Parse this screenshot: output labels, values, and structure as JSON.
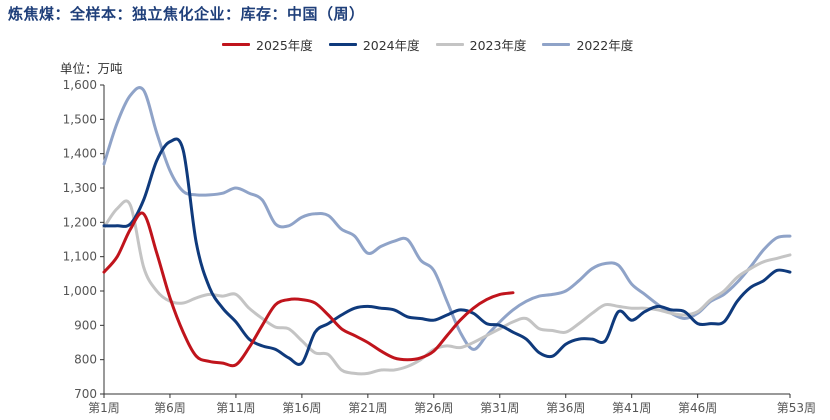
{
  "title": "炼焦煤：全样本：独立焦化企业：库存：中国（周）",
  "unit_label": "单位：万吨",
  "chart_data": {
    "type": "line",
    "title": "炼焦煤：全样本：独立焦化企业：库存：中国（周）",
    "ylabel": "单位：万吨",
    "ylim": [
      700,
      1600
    ],
    "yticks": [
      700,
      800,
      900,
      1000,
      1100,
      1200,
      1300,
      1400,
      1500,
      1600
    ],
    "ytick_labels": [
      "700",
      "800",
      "900",
      "1,000",
      "1,100",
      "1,200",
      "1,300",
      "1,400",
      "1,500",
      "1,600"
    ],
    "xlim": [
      1,
      53
    ],
    "xticks": [
      1,
      6,
      11,
      16,
      21,
      26,
      31,
      36,
      41,
      46,
      53
    ],
    "xtick_labels": [
      "第1周",
      "第6周",
      "第11周",
      "第16周",
      "第21周",
      "第26周",
      "第31周",
      "第36周",
      "第41周",
      "第46周",
      "第53周"
    ],
    "legend_position": "top",
    "grid": false,
    "series": [
      {
        "name": "2025年度",
        "color": "#c0141c",
        "x": [
          1,
          2,
          3,
          4,
          5,
          6,
          7,
          8,
          9,
          10,
          11,
          12,
          13,
          14,
          15,
          16,
          17,
          18,
          19,
          20,
          21,
          22,
          23,
          24,
          25,
          26,
          27,
          28,
          29,
          30,
          31,
          32
        ],
        "values": [
          1055,
          1100,
          1180,
          1225,
          1110,
          980,
          880,
          810,
          795,
          790,
          785,
          835,
          900,
          960,
          975,
          975,
          965,
          930,
          890,
          870,
          850,
          825,
          805,
          800,
          805,
          825,
          870,
          915,
          950,
          975,
          990,
          995
        ]
      },
      {
        "name": "2024年度",
        "color": "#0f3a7c",
        "x": [
          1,
          2,
          3,
          4,
          5,
          6,
          7,
          8,
          9,
          10,
          11,
          12,
          13,
          14,
          15,
          16,
          17,
          18,
          19,
          20,
          21,
          22,
          23,
          24,
          25,
          26,
          27,
          28,
          29,
          30,
          31,
          32,
          33,
          34,
          35,
          36,
          37,
          38,
          39,
          40,
          41,
          42,
          43,
          44,
          45,
          46,
          47,
          48,
          49,
          50,
          51,
          52,
          53
        ],
        "values": [
          1190,
          1190,
          1195,
          1265,
          1380,
          1435,
          1410,
          1140,
          1010,
          950,
          910,
          860,
          840,
          830,
          805,
          790,
          880,
          905,
          930,
          950,
          955,
          950,
          945,
          925,
          920,
          915,
          930,
          945,
          935,
          905,
          900,
          880,
          860,
          820,
          810,
          845,
          860,
          860,
          855,
          940,
          915,
          940,
          955,
          945,
          940,
          905,
          905,
          910,
          970,
          1010,
          1030,
          1060,
          1055
        ]
      },
      {
        "name": "2023年度",
        "color": "#c4c4c4",
        "x": [
          1,
          2,
          3,
          4,
          5,
          6,
          7,
          8,
          9,
          10,
          11,
          12,
          13,
          14,
          15,
          16,
          17,
          18,
          19,
          20,
          21,
          22,
          23,
          24,
          25,
          26,
          27,
          28,
          29,
          30,
          31,
          32,
          33,
          34,
          35,
          36,
          37,
          38,
          39,
          40,
          41,
          42,
          43,
          44,
          45,
          46,
          47,
          48,
          49,
          50,
          51,
          52,
          53
        ],
        "values": [
          1185,
          1240,
          1250,
          1070,
          1000,
          970,
          965,
          980,
          990,
          985,
          990,
          950,
          920,
          895,
          890,
          855,
          820,
          815,
          770,
          760,
          760,
          770,
          770,
          780,
          800,
          830,
          840,
          835,
          850,
          870,
          890,
          910,
          920,
          890,
          885,
          880,
          905,
          935,
          960,
          955,
          950,
          950,
          945,
          935,
          930,
          940,
          975,
          1000,
          1040,
          1065,
          1085,
          1095,
          1105
        ]
      },
      {
        "name": "2022年度",
        "color": "#8fa3c8",
        "x": [
          1,
          2,
          3,
          4,
          5,
          6,
          7,
          8,
          9,
          10,
          11,
          12,
          13,
          14,
          15,
          16,
          17,
          18,
          19,
          20,
          21,
          22,
          23,
          24,
          25,
          26,
          27,
          28,
          29,
          30,
          31,
          32,
          33,
          34,
          35,
          36,
          37,
          38,
          39,
          40,
          41,
          42,
          43,
          44,
          45,
          46,
          47,
          48,
          49,
          50,
          51,
          52,
          53
        ],
        "values": [
          1370,
          1490,
          1570,
          1585,
          1460,
          1350,
          1290,
          1280,
          1280,
          1285,
          1300,
          1285,
          1265,
          1195,
          1190,
          1215,
          1225,
          1220,
          1180,
          1160,
          1110,
          1130,
          1145,
          1150,
          1090,
          1060,
          970,
          880,
          830,
          870,
          910,
          945,
          970,
          985,
          990,
          1000,
          1030,
          1065,
          1080,
          1075,
          1020,
          990,
          960,
          935,
          920,
          935,
          970,
          990,
          1025,
          1070,
          1120,
          1155,
          1160
        ]
      }
    ]
  }
}
